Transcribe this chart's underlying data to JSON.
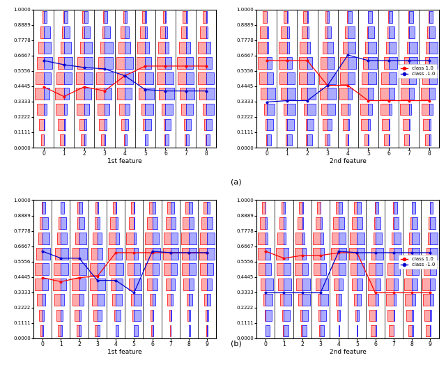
{
  "fig_width": 6.4,
  "fig_height": 5.4,
  "dpi": 100,
  "background": "white",
  "row_a_windows": 9,
  "row_b_windows": 10,
  "n_bins": 9,
  "ylim": [
    0.0,
    1.0
  ],
  "yticks": [
    0.0,
    0.1111,
    0.2222,
    0.3333,
    0.4445,
    0.5556,
    0.6667,
    0.7778,
    0.8889,
    1.0
  ],
  "ytick_labels": [
    "0.0000",
    "0.1111",
    "0.2222",
    "0.3333",
    "0.4445",
    "0.5556",
    "0.6667",
    "0.7778",
    "0.8889",
    "1.0000"
  ],
  "color_class1_face": "#FFAAAA",
  "color_class1_edge": "#FF0000",
  "color_class_neg1_face": "#AAAAFF",
  "color_class_neg1_edge": "#0000FF",
  "subplot_xlabels": [
    "1st feature",
    "2nd feature"
  ],
  "red_line_color": "#FF0000",
  "blue_line_color": "#0000CC",
  "row_a_red_means_feat1": [
    0.44,
    0.37,
    0.44,
    0.41,
    0.52,
    0.59,
    0.59,
    0.59,
    0.59
  ],
  "row_a_blue_means_feat1": [
    0.63,
    0.6,
    0.58,
    0.57,
    0.52,
    0.42,
    0.41,
    0.41,
    0.41
  ],
  "row_a_red_means_feat2": [
    0.63,
    0.63,
    0.63,
    0.45,
    0.45,
    0.34,
    0.34,
    0.34,
    0.34
  ],
  "row_a_blue_means_feat2": [
    0.33,
    0.34,
    0.34,
    0.45,
    0.67,
    0.63,
    0.63,
    0.63,
    0.63
  ],
  "row_b_red_means_feat1": [
    0.44,
    0.41,
    0.44,
    0.45,
    0.62,
    0.62,
    0.62,
    0.62,
    0.62,
    0.62
  ],
  "row_b_blue_means_feat1": [
    0.63,
    0.58,
    0.58,
    0.42,
    0.42,
    0.33,
    0.63,
    0.62,
    0.62,
    0.62
  ],
  "row_b_red_means_feat2": [
    0.63,
    0.58,
    0.6,
    0.6,
    0.62,
    0.62,
    0.33,
    0.33,
    0.33,
    0.33
  ],
  "row_b_blue_means_feat2": [
    0.33,
    0.33,
    0.33,
    0.33,
    0.63,
    0.62,
    0.62,
    0.62,
    0.62,
    0.62
  ],
  "seed_base": 100
}
